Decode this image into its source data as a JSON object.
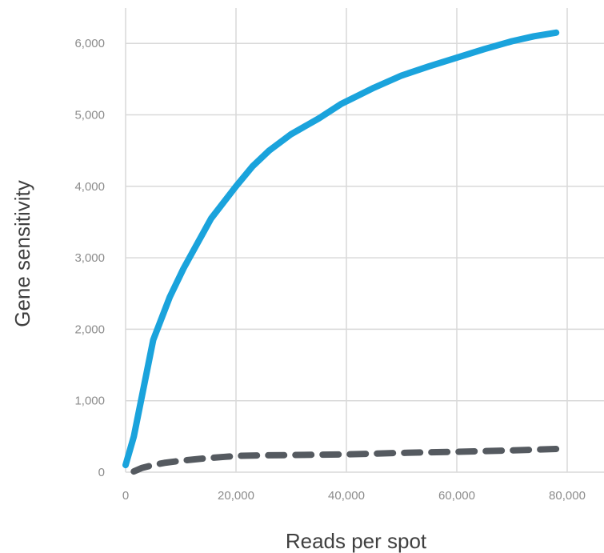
{
  "chart_data": {
    "type": "line",
    "xlabel": "Reads per spot",
    "ylabel": "Gene sensitivity",
    "xlim": [
      0,
      85000
    ],
    "ylim": [
      0,
      6500
    ],
    "x_ticks": [
      0,
      20000,
      40000,
      60000,
      80000
    ],
    "x_tick_labels": [
      "0",
      "20,000",
      "40,000",
      "60,000",
      "80,000"
    ],
    "y_ticks": [
      0,
      1000,
      2000,
      3000,
      4000,
      5000,
      6000
    ],
    "y_tick_labels": [
      "0",
      "1,000",
      "2,000",
      "3,000",
      "4,000",
      "5,000",
      "6,000"
    ],
    "grid": true,
    "legend": "none",
    "series": [
      {
        "color": "#1aa3dc",
        "style": "solid",
        "points": [
          [
            0,
            100
          ],
          [
            1500,
            500
          ],
          [
            5000,
            1850
          ],
          [
            8000,
            2450
          ],
          [
            10500,
            2850
          ],
          [
            15500,
            3550
          ],
          [
            20000,
            4000
          ],
          [
            23000,
            4280
          ],
          [
            26000,
            4500
          ],
          [
            30000,
            4730
          ],
          [
            35000,
            4950
          ],
          [
            39000,
            5150
          ],
          [
            45000,
            5380
          ],
          [
            50000,
            5550
          ],
          [
            55000,
            5680
          ],
          [
            60000,
            5800
          ],
          [
            65000,
            5920
          ],
          [
            70000,
            6030
          ],
          [
            74000,
            6100
          ],
          [
            78000,
            6150
          ]
        ]
      },
      {
        "color": "#555a60",
        "style": "dashed",
        "points": [
          [
            1500,
            10
          ],
          [
            3000,
            60
          ],
          [
            5000,
            100
          ],
          [
            7000,
            130
          ],
          [
            10000,
            160
          ],
          [
            14000,
            190
          ],
          [
            18000,
            215
          ],
          [
            21000,
            230
          ],
          [
            25000,
            235
          ],
          [
            30000,
            240
          ],
          [
            40000,
            250
          ],
          [
            50000,
            270
          ],
          [
            60000,
            285
          ],
          [
            70000,
            305
          ],
          [
            78000,
            325
          ]
        ]
      }
    ]
  }
}
